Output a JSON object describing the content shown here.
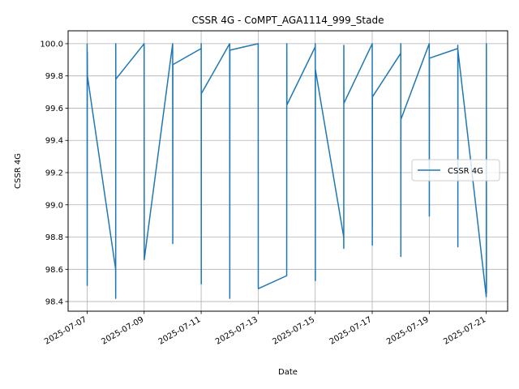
{
  "chart_data": {
    "type": "line",
    "title": "CSSR 4G - CoMPT_AGA1114_999_Stade",
    "xlabel": "Date",
    "ylabel": "CSSR 4G",
    "x_axis_type": "date",
    "xlim": [
      "2025-07-06 08:00",
      "2025-07-21 18:00"
    ],
    "ylim": [
      98.34,
      100.08
    ],
    "x_ticks": [
      "2025-07-07",
      "2025-07-09",
      "2025-07-11",
      "2025-07-13",
      "2025-07-15",
      "2025-07-17",
      "2025-07-19",
      "2025-07-21"
    ],
    "y_ticks": [
      "98.4",
      "98.6",
      "98.8",
      "99.0",
      "99.2",
      "99.4",
      "99.6",
      "99.8",
      "100.0"
    ],
    "grid": true,
    "legend_position": "center-right",
    "color": "#1f77b4",
    "series": [
      {
        "name": "CSSR 4G",
        "points": [
          [
            "2025-07-07 00:00",
            100.0
          ],
          [
            "2025-07-07 00:05",
            98.5
          ],
          [
            "2025-07-07 00:10",
            99.95
          ],
          [
            "2025-07-07 00:15",
            99.8
          ],
          [
            "2025-07-08 00:00",
            98.6
          ],
          [
            "2025-07-08 00:03",
            98.42
          ],
          [
            "2025-07-08 00:06",
            100.0
          ],
          [
            "2025-07-08 00:09",
            99.78
          ],
          [
            "2025-07-09 00:00",
            100.0
          ],
          [
            "2025-07-09 00:05",
            98.66
          ],
          [
            "2025-07-10 00:00",
            100.0
          ],
          [
            "2025-07-10 00:05",
            98.76
          ],
          [
            "2025-07-10 00:10",
            99.87
          ],
          [
            "2025-07-11 00:00",
            99.97
          ],
          [
            "2025-07-11 00:03",
            100.0
          ],
          [
            "2025-07-11 00:06",
            98.51
          ],
          [
            "2025-07-11 00:09",
            99.69
          ],
          [
            "2025-07-12 00:00",
            100.0
          ],
          [
            "2025-07-12 00:05",
            98.42
          ],
          [
            "2025-07-12 00:10",
            99.96
          ],
          [
            "2025-07-13 00:00",
            100.0
          ],
          [
            "2025-07-13 00:05",
            98.48
          ],
          [
            "2025-07-14 00:00",
            98.56
          ],
          [
            "2025-07-14 00:05",
            100.0
          ],
          [
            "2025-07-14 00:10",
            99.62
          ],
          [
            "2025-07-15 00:00",
            99.98
          ],
          [
            "2025-07-15 00:03",
            100.0
          ],
          [
            "2025-07-15 00:06",
            98.53
          ],
          [
            "2025-07-15 00:09",
            99.84
          ],
          [
            "2025-07-16 00:00",
            98.8
          ],
          [
            "2025-07-16 00:03",
            98.73
          ],
          [
            "2025-07-16 00:06",
            99.99
          ],
          [
            "2025-07-16 00:09",
            99.63
          ],
          [
            "2025-07-17 00:00",
            100.0
          ],
          [
            "2025-07-17 00:05",
            98.75
          ],
          [
            "2025-07-17 00:10",
            99.67
          ],
          [
            "2025-07-18 00:00",
            99.94
          ],
          [
            "2025-07-18 00:03",
            100.0
          ],
          [
            "2025-07-18 00:06",
            98.68
          ],
          [
            "2025-07-18 00:09",
            99.53
          ],
          [
            "2025-07-19 00:00",
            100.0
          ],
          [
            "2025-07-19 00:05",
            98.93
          ],
          [
            "2025-07-19 00:10",
            99.91
          ],
          [
            "2025-07-20 00:00",
            99.97
          ],
          [
            "2025-07-20 00:03",
            99.99
          ],
          [
            "2025-07-20 00:06",
            98.74
          ],
          [
            "2025-07-20 00:09",
            99.96
          ],
          [
            "2025-07-21 00:00",
            98.43
          ],
          [
            "2025-07-21 00:05",
            100.0
          ],
          [
            "2025-07-21 00:10",
            98.45
          ]
        ]
      }
    ]
  }
}
